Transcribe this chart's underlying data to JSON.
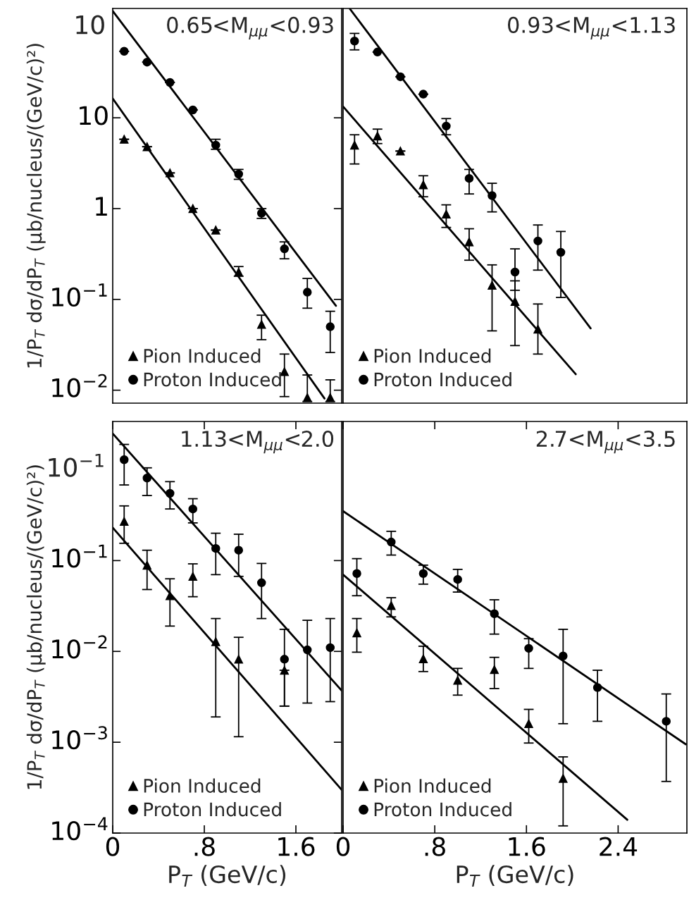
{
  "chart_data": [
    {
      "type": "scatter",
      "ylabel": "1/P$_{T}$ dσ/dP$_{T}$ (μb/nucleus/(GeV/c)²)",
      "annotations": [
        "0.65<M$_{μμ}$<0.93",
        "10"
      ],
      "log": "y",
      "xlim": [
        0,
        2.0
      ],
      "ylim": [
        0.0072,
        160
      ],
      "yticks": [
        {
          "value": 0.01,
          "label": "10$^{−2}$"
        },
        {
          "value": 0.1,
          "label": "10$^{−1}$"
        },
        1,
        10
      ],
      "tick_labels": "y",
      "legend": "bottom left",
      "x": [
        0.1,
        0.3,
        0.5,
        0.7,
        0.9,
        1.1,
        1.3,
        1.5,
        1.7,
        1.9
      ],
      "series": [
        {
          "name": "Pion Induced",
          "marker": "triangle",
          "color": "#000000",
          "values": [
            5.8,
            4.8,
            2.47,
            1.0,
            0.58,
            0.2,
            0.053,
            0.016,
            0.0083,
            0.0083
          ],
          "errors": [
            null,
            null,
            null,
            null,
            null,
            [
              0.18,
              0.23
            ],
            [
              0.036,
              0.067
            ],
            [
              0.0085,
              0.025
            ],
            [
              0.0075,
              0.0147
            ],
            [
              0.0075,
              0.013
            ]
          ]
        },
        {
          "name": "Proton Induced",
          "marker": "circle",
          "color": "#000000",
          "values": [
            54,
            41,
            24.5,
            12.2,
            5.0,
            2.4,
            0.89,
            0.36,
            0.12,
            0.05
          ],
          "errors": [
            null,
            null,
            null,
            null,
            [
              4.5,
              5.8
            ],
            [
              2.1,
              2.7
            ],
            [
              0.78,
              1.0
            ],
            [
              0.28,
              0.43
            ],
            [
              0.08,
              0.17
            ],
            [
              0.026,
              0.074
            ]
          ]
        },
        {
          "type": "line",
          "marker": "none",
          "color": "#000000",
          "x": [
            0,
            1.85
          ],
          "values": [
            16.3,
            0.0081
          ]
        },
        {
          "type": "line",
          "marker": "none",
          "color": "#000000",
          "x": [
            0,
            1.95
          ],
          "values": [
            150,
            0.085
          ]
        }
      ]
    },
    {
      "type": "scatter",
      "annotations": [
        "0.93<M$_{μμ}$<1.13"
      ],
      "log": "y",
      "xlim": [
        0,
        3.0
      ],
      "ylim": [
        0.0072,
        160
      ],
      "tick_labels": false,
      "legend": "bottom left",
      "x": [
        0.1,
        0.3,
        0.5,
        0.7,
        0.9,
        1.1,
        1.3,
        1.5,
        1.7,
        1.9
      ],
      "series": [
        {
          "name": "Pion Induced",
          "marker": "triangle",
          "color": "#000000",
          "values": [
            5.0,
            6.3,
            4.3,
            1.83,
            0.87,
            0.43,
            0.143,
            0.095,
            0.047,
            null
          ],
          "errors": [
            [
              3.1,
              6.5
            ],
            [
              5.2,
              7.5
            ],
            null,
            [
              1.35,
              2.3
            ],
            [
              0.62,
              1.1
            ],
            [
              0.27,
              0.6
            ],
            [
              0.045,
              0.24
            ],
            [
              0.031,
              0.16
            ],
            [
              0.025,
              0.089
            ],
            null
          ]
        },
        {
          "name": "Proton Induced",
          "marker": "circle",
          "color": "#000000",
          "values": [
            70,
            53,
            28.3,
            18.2,
            8.1,
            2.15,
            1.39,
            0.2,
            0.44,
            0.33
          ],
          "errors": [
            [
              56,
              85
            ],
            null,
            null,
            null,
            [
              6.5,
              9.8
            ],
            [
              1.45,
              2.7
            ],
            [
              0.92,
              1.9
            ],
            [
              0.126,
              0.36
            ],
            [
              0.21,
              0.66
            ],
            [
              0.105,
              0.56
            ]
          ]
        },
        {
          "type": "line",
          "marker": "none",
          "color": "#000000",
          "x": [
            0,
            2.03
          ],
          "values": [
            13.3,
            0.015
          ]
        },
        {
          "type": "line",
          "marker": "none",
          "color": "#000000",
          "x": [
            0.06,
            2.16
          ],
          "values": [
            158,
            0.048
          ]
        }
      ]
    },
    {
      "type": "scatter",
      "ylabel": "1/P$_{T}$ dσ/dP$_{T}$ (μb/nucleus/(GeV/c)²)",
      "xlabel": "P$_{T}$ (GeV/c)",
      "annotations": [
        "1.13<M$_{μμ}$<2.0",
        "10$^{−1}$"
      ],
      "log": "y",
      "xlim": [
        0,
        2.0
      ],
      "ylim": [
        0.0001,
        3.4
      ],
      "xticks": [
        0,
        {
          "value": 0.8,
          "label": ".8"
        },
        {
          "value": 1.6,
          "label": "1.6"
        }
      ],
      "yticks": [
        {
          "value": 0.0001,
          "label": "10$^{−4}$"
        },
        {
          "value": 0.001,
          "label": "10$^{−3}$"
        },
        {
          "value": 0.01,
          "label": "10$^{−2}$"
        },
        {
          "value": 0.1,
          "label": "10$^{−1}$"
        }
      ],
      "legend": "bottom left",
      "x": [
        0.1,
        0.3,
        0.5,
        0.7,
        0.9,
        1.1,
        1.3,
        1.5,
        1.7,
        1.9
      ],
      "series": [
        {
          "name": "Pion Induced",
          "marker": "triangle",
          "color": "#000000",
          "values": [
            0.27,
            0.089,
            0.041,
            0.067,
            0.0128,
            0.0082,
            null,
            0.0062,
            null,
            null
          ],
          "errors": [
            [
              0.155,
              0.4
            ],
            [
              0.048,
              0.13
            ],
            [
              0.019,
              0.063
            ],
            [
              0.04,
              0.092
            ],
            [
              0.0019,
              0.023
            ],
            [
              0.00115,
              0.0143
            ],
            null,
            [
              0.0025,
              0.0062
            ],
            null,
            null
          ]
        },
        {
          "name": "Proton Induced",
          "marker": "circle",
          "color": "#000000",
          "values": [
            1.29,
            0.81,
            0.55,
            0.37,
            0.136,
            0.13,
            0.057,
            0.0082,
            0.0104,
            0.011
          ],
          "errors": [
            [
              0.68,
              1.9
            ],
            [
              0.52,
              1.05
            ],
            [
              0.37,
              0.74
            ],
            [
              0.26,
              0.48
            ],
            [
              0.07,
              0.2
            ],
            [
              0.067,
              0.195
            ],
            [
              0.023,
              0.093
            ],
            [
              0.0025,
              0.0175
            ],
            [
              0.0027,
              0.022
            ],
            [
              0.0028,
              0.023
            ]
          ]
        },
        {
          "type": "line",
          "marker": "none",
          "color": "#000000",
          "x": [
            0,
            2.0
          ],
          "values": [
            0.23,
            0.0003
          ]
        },
        {
          "type": "line",
          "marker": "none",
          "color": "#000000",
          "x": [
            0,
            2.0
          ],
          "values": [
            2.5,
            0.0037
          ]
        }
      ]
    },
    {
      "type": "scatter",
      "xlabel": "P$_{T}$ (GeV/c)",
      "annotations": [
        "2.7<M$_{μμ}$<3.5"
      ],
      "log": "y",
      "xlim": [
        0,
        3.0
      ],
      "ylim": [
        0.0001,
        3.4
      ],
      "xticks": [
        0,
        {
          "value": 0.8,
          "label": ".8"
        },
        {
          "value": 1.6,
          "label": "1.6"
        },
        {
          "value": 2.4,
          "label": "2.4"
        }
      ],
      "tick_labels": "x",
      "legend": "bottom left",
      "x": [
        0.12,
        0.42,
        0.7,
        1.0,
        1.32,
        1.62,
        1.92,
        2.22,
        2.82
      ],
      "series": [
        {
          "name": "Pion Induced",
          "marker": "triangle",
          "color": "#000000",
          "values": [
            0.016,
            0.032,
            0.0083,
            0.0048,
            0.0063,
            0.0016,
            0.0004,
            null,
            null
          ],
          "errors": [
            [
              0.0098,
              0.023
            ],
            [
              0.024,
              0.039
            ],
            [
              0.006,
              0.0114
            ],
            [
              0.0033,
              0.0065
            ],
            [
              0.0039,
              0.0086
            ],
            [
              0.00098,
              0.0023
            ],
            [
              0.00012,
              0.00069
            ],
            null,
            null
          ]
        },
        {
          "name": "Proton Induced",
          "marker": "circle",
          "color": "#000000",
          "values": [
            0.072,
            0.16,
            0.072,
            0.062,
            0.026,
            0.0108,
            0.0089,
            0.004,
            0.0017
          ],
          "errors": [
            [
              0.041,
              0.105
            ],
            [
              0.115,
              0.21
            ],
            [
              0.055,
              0.089
            ],
            [
              0.045,
              0.08
            ],
            [
              0.0155,
              0.037
            ],
            [
              0.0065,
              0.0138
            ],
            [
              0.0016,
              0.0175
            ],
            [
              0.0017,
              0.0062
            ],
            [
              0.00037,
              0.0034
            ]
          ]
        },
        {
          "type": "line",
          "marker": "none",
          "color": "#000000",
          "x": [
            0,
            2.48
          ],
          "values": [
            0.07,
            0.00014
          ]
        },
        {
          "type": "line",
          "marker": "none",
          "color": "#000000",
          "x": [
            0,
            2.99
          ],
          "values": [
            0.35,
            0.00095
          ]
        }
      ]
    }
  ]
}
